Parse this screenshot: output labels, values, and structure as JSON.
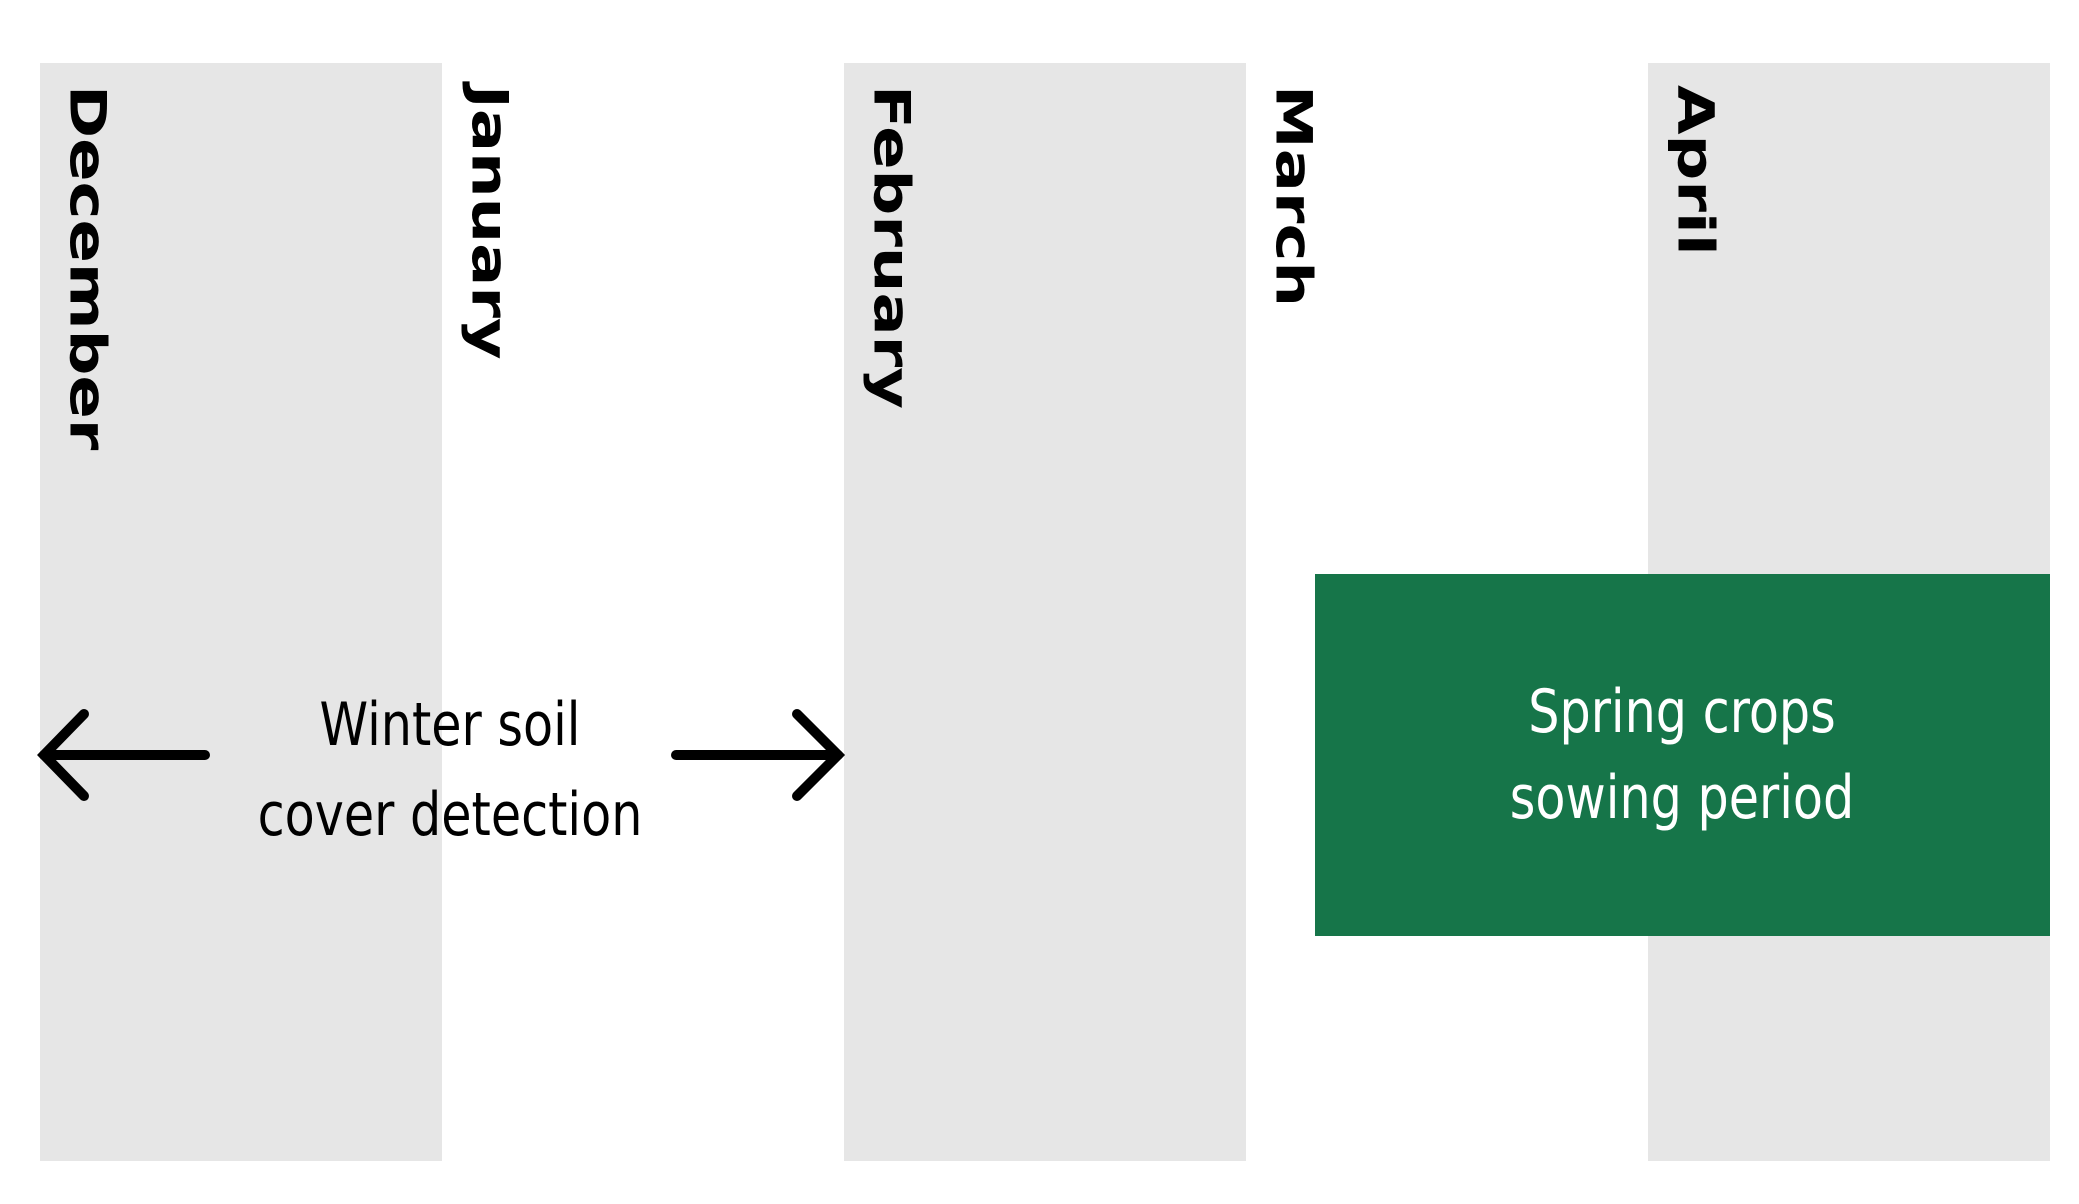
{
  "months": [
    {
      "name": "December",
      "shaded": true
    },
    {
      "name": "January",
      "shaded": false
    },
    {
      "name": "February",
      "shaded": true
    },
    {
      "name": "March",
      "shaded": false
    },
    {
      "name": "April",
      "shaded": true
    }
  ],
  "winter_period": {
    "label_line1": "Winter soil",
    "label_line2": "cover detection",
    "color": "#000000"
  },
  "spring_period": {
    "label_line1": "Spring crops",
    "label_line2": "sowing period",
    "color": "#167549",
    "text_color": "#ffffff"
  },
  "colors": {
    "shaded_column": "#e6e6e6",
    "background": "#ffffff"
  }
}
